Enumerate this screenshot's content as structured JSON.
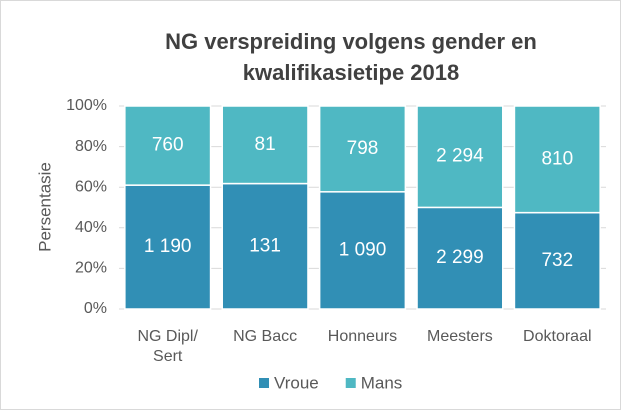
{
  "chart_data": {
    "type": "bar",
    "stacked": "percent",
    "title": "NG verspreiding volgens gender en kwalifikasietipe 2018",
    "y_label": "Persentasie",
    "categories": [
      "NG Dipl/ Sert",
      "NG Bacc",
      "Honneurs",
      "Meesters",
      "Doktoraal"
    ],
    "series": [
      {
        "name": "Vroue",
        "color": "#318fb5",
        "values": [
          1190,
          131,
          1090,
          2299,
          732
        ],
        "value_labels": [
          "1 190",
          "131",
          "1 090",
          "2 299",
          "732"
        ]
      },
      {
        "name": "Mans",
        "color": "#4fb8c3",
        "values": [
          760,
          81,
          798,
          2294,
          810
        ],
        "value_labels": [
          "760",
          "81",
          "798",
          "2 294",
          "810"
        ]
      }
    ],
    "ylim": [
      0,
      100
    ],
    "yticks": [
      {
        "value": 0,
        "label": "0%"
      },
      {
        "value": 20,
        "label": "20%"
      },
      {
        "value": 40,
        "label": "40%"
      },
      {
        "value": 60,
        "label": "60%"
      },
      {
        "value": 80,
        "label": "80%"
      },
      {
        "value": 100,
        "label": "100%"
      }
    ],
    "grid": true,
    "legend": "bottom"
  }
}
